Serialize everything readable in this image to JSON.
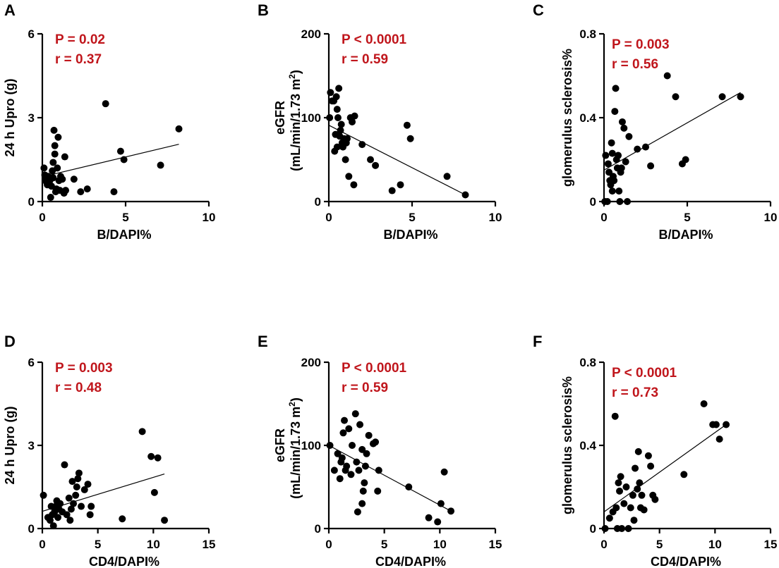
{
  "figure": {
    "width": 1104,
    "height": 806
  },
  "chart_data": [
    {
      "panel": "A",
      "type": "scatter",
      "xlabel": "B/DAPI%",
      "ylabel": "24 h Upro (g)",
      "xlim": [
        0,
        10
      ],
      "ylim": [
        0,
        6
      ],
      "xticks": [
        0,
        5,
        10
      ],
      "yticks": [
        0,
        3,
        6
      ],
      "stats": [
        "P = 0.02",
        "r = 0.37"
      ],
      "fit": {
        "x": [
          0.1,
          8.2
        ],
        "y": [
          0.9,
          2.05
        ]
      },
      "points": [
        [
          0.1,
          1.2
        ],
        [
          0.15,
          0.95
        ],
        [
          0.2,
          0.8
        ],
        [
          0.25,
          0.7
        ],
        [
          0.3,
          0.6
        ],
        [
          0.35,
          0.9
        ],
        [
          0.4,
          0.8
        ],
        [
          0.45,
          0.75
        ],
        [
          0.5,
          0.15
        ],
        [
          0.55,
          0.55
        ],
        [
          0.6,
          1.1
        ],
        [
          0.65,
          0.85
        ],
        [
          0.65,
          1.4
        ],
        [
          0.7,
          2.55
        ],
        [
          0.75,
          1.7
        ],
        [
          0.75,
          2.0
        ],
        [
          0.8,
          0.35
        ],
        [
          0.85,
          0.45
        ],
        [
          0.9,
          1.2
        ],
        [
          0.95,
          2.3
        ],
        [
          1.0,
          0.75
        ],
        [
          1.05,
          0.4
        ],
        [
          1.1,
          0.9
        ],
        [
          1.2,
          0.8
        ],
        [
          1.3,
          0.3
        ],
        [
          1.35,
          1.6
        ],
        [
          1.4,
          0.4
        ],
        [
          1.9,
          0.8
        ],
        [
          2.3,
          0.35
        ],
        [
          2.7,
          0.45
        ],
        [
          3.8,
          3.5
        ],
        [
          4.3,
          0.35
        ],
        [
          4.7,
          1.8
        ],
        [
          4.9,
          1.5
        ],
        [
          7.1,
          1.3
        ],
        [
          8.2,
          2.6
        ]
      ]
    },
    {
      "panel": "B",
      "type": "scatter",
      "xlabel": "B/DAPI%",
      "ylabel_line1": "eGFR",
      "ylabel_line2": "(mL/min/1.73 m",
      "ylabel_sup": "2",
      "ylabel_close": ")",
      "xlim": [
        0,
        10
      ],
      "ylim": [
        0,
        200
      ],
      "xticks": [
        0,
        5,
        10
      ],
      "yticks": [
        0,
        100,
        200
      ],
      "stats": [
        "P < 0.0001",
        "r = 0.59"
      ],
      "fit": {
        "x": [
          0.0,
          8.2
        ],
        "y": [
          91,
          8
        ]
      },
      "points": [
        [
          0.05,
          100
        ],
        [
          0.1,
          130
        ],
        [
          0.2,
          120
        ],
        [
          0.3,
          120
        ],
        [
          0.35,
          60
        ],
        [
          0.4,
          80
        ],
        [
          0.45,
          125
        ],
        [
          0.5,
          65
        ],
        [
          0.5,
          110
        ],
        [
          0.55,
          100
        ],
        [
          0.6,
          135
        ],
        [
          0.65,
          78
        ],
        [
          0.7,
          85
        ],
        [
          0.75,
          92
        ],
        [
          0.8,
          70
        ],
        [
          0.85,
          65
        ],
        [
          0.9,
          75
        ],
        [
          1.0,
          50
        ],
        [
          1.05,
          70
        ],
        [
          1.1,
          75
        ],
        [
          1.2,
          30
        ],
        [
          1.3,
          100
        ],
        [
          1.4,
          95
        ],
        [
          1.5,
          20
        ],
        [
          1.55,
          102
        ],
        [
          2.0,
          68
        ],
        [
          2.5,
          50
        ],
        [
          2.8,
          43
        ],
        [
          3.8,
          13
        ],
        [
          4.3,
          20
        ],
        [
          4.7,
          91
        ],
        [
          4.9,
          75
        ],
        [
          7.1,
          30
        ],
        [
          8.2,
          8
        ]
      ]
    },
    {
      "panel": "C",
      "type": "scatter",
      "xlabel": "B/DAPI%",
      "ylabel": "glomerulus sclerosis%",
      "xlim": [
        0,
        10
      ],
      "ylim": [
        0,
        0.8
      ],
      "xticks": [
        0,
        5,
        10
      ],
      "yticks": [
        0,
        0.4,
        0.8
      ],
      "ytick_labels": [
        "0",
        "0.4",
        "0.8"
      ],
      "stats": [
        "P = 0.003",
        "r = 0.56"
      ],
      "fit": {
        "x": [
          0.0,
          8.2
        ],
        "y": [
          0.15,
          0.52
        ]
      },
      "points": [
        [
          0.05,
          0.0
        ],
        [
          0.1,
          0.22
        ],
        [
          0.2,
          0.0
        ],
        [
          0.25,
          0.18
        ],
        [
          0.3,
          0.14
        ],
        [
          0.35,
          0.1
        ],
        [
          0.4,
          0.08
        ],
        [
          0.45,
          0.28
        ],
        [
          0.5,
          0.05
        ],
        [
          0.5,
          0.23
        ],
        [
          0.55,
          0.12
        ],
        [
          0.6,
          0.1
        ],
        [
          0.65,
          0.43
        ],
        [
          0.7,
          0.54
        ],
        [
          0.75,
          0.2
        ],
        [
          0.8,
          0.16
        ],
        [
          0.85,
          0.22
        ],
        [
          0.9,
          0.05
        ],
        [
          0.95,
          0.0
        ],
        [
          1.0,
          0.14
        ],
        [
          1.05,
          0.16
        ],
        [
          1.1,
          0.38
        ],
        [
          1.2,
          0.35
        ],
        [
          1.3,
          0.19
        ],
        [
          1.4,
          0.0
        ],
        [
          1.5,
          0.31
        ],
        [
          2.0,
          0.25
        ],
        [
          2.5,
          0.26
        ],
        [
          2.8,
          0.17
        ],
        [
          3.8,
          0.6
        ],
        [
          4.3,
          0.5
        ],
        [
          4.7,
          0.18
        ],
        [
          4.9,
          0.2
        ],
        [
          7.1,
          0.5
        ],
        [
          8.2,
          0.5
        ]
      ]
    },
    {
      "panel": "D",
      "type": "scatter",
      "xlabel": "CD4/DAPI%",
      "ylabel": "24 h Upro (g)",
      "xlim": [
        0,
        15
      ],
      "ylim": [
        0,
        6
      ],
      "xticks": [
        0,
        5,
        10,
        15
      ],
      "yticks": [
        0,
        3,
        6
      ],
      "stats": [
        "P = 0.003",
        "r = 0.48"
      ],
      "fit": {
        "x": [
          0.0,
          11.0
        ],
        "y": [
          0.62,
          1.97
        ]
      },
      "points": [
        [
          0.1,
          1.2
        ],
        [
          0.5,
          0.4
        ],
        [
          0.7,
          0.3
        ],
        [
          0.8,
          0.8
        ],
        [
          0.9,
          0.5
        ],
        [
          1.0,
          0.1
        ],
        [
          1.1,
          0.6
        ],
        [
          1.2,
          0.8
        ],
        [
          1.3,
          1.0
        ],
        [
          1.4,
          0.4
        ],
        [
          1.5,
          0.7
        ],
        [
          1.6,
          0.9
        ],
        [
          1.8,
          0.6
        ],
        [
          2.0,
          2.3
        ],
        [
          2.2,
          0.5
        ],
        [
          2.4,
          1.1
        ],
        [
          2.5,
          0.3
        ],
        [
          2.6,
          0.7
        ],
        [
          2.7,
          1.7
        ],
        [
          2.8,
          0.9
        ],
        [
          3.0,
          1.2
        ],
        [
          3.1,
          1.5
        ],
        [
          3.2,
          1.8
        ],
        [
          3.3,
          2.0
        ],
        [
          3.5,
          0.8
        ],
        [
          3.8,
          1.4
        ],
        [
          4.1,
          1.6
        ],
        [
          4.3,
          0.5
        ],
        [
          4.4,
          0.8
        ],
        [
          7.2,
          0.35
        ],
        [
          9.0,
          3.5
        ],
        [
          9.8,
          2.6
        ],
        [
          10.1,
          1.3
        ],
        [
          10.4,
          2.55
        ],
        [
          11.0,
          0.3
        ]
      ]
    },
    {
      "panel": "E",
      "type": "scatter",
      "xlabel": "CD4/DAPI%",
      "ylabel_line1": "eGFR",
      "ylabel_line2": "(mL/min/1.73 m",
      "ylabel_sup": "2",
      "ylabel_close": ")",
      "xlim": [
        0,
        15
      ],
      "ylim": [
        0,
        200
      ],
      "xticks": [
        0,
        5,
        10,
        15
      ],
      "yticks": [
        0,
        100,
        200
      ],
      "stats": [
        "P < 0.0001",
        "r = 0.59"
      ],
      "fit": {
        "x": [
          0.0,
          11.0
        ],
        "y": [
          100,
          21
        ]
      },
      "points": [
        [
          0.1,
          100
        ],
        [
          0.5,
          70
        ],
        [
          0.8,
          90
        ],
        [
          1.0,
          60
        ],
        [
          1.1,
          80
        ],
        [
          1.2,
          85
        ],
        [
          1.3,
          115
        ],
        [
          1.4,
          130
        ],
        [
          1.5,
          70
        ],
        [
          1.6,
          75
        ],
        [
          1.8,
          120
        ],
        [
          2.0,
          65
        ],
        [
          2.1,
          100
        ],
        [
          2.4,
          138
        ],
        [
          2.5,
          80
        ],
        [
          2.6,
          20
        ],
        [
          2.7,
          70
        ],
        [
          2.8,
          125
        ],
        [
          3.0,
          95
        ],
        [
          3.0,
          30
        ],
        [
          3.1,
          45
        ],
        [
          3.2,
          55
        ],
        [
          3.3,
          75
        ],
        [
          3.4,
          90
        ],
        [
          3.6,
          112
        ],
        [
          4.0,
          102
        ],
        [
          4.2,
          104
        ],
        [
          4.4,
          45
        ],
        [
          4.5,
          70
        ],
        [
          7.2,
          50
        ],
        [
          9.0,
          13
        ],
        [
          9.8,
          8
        ],
        [
          10.1,
          30
        ],
        [
          10.4,
          68
        ],
        [
          11.0,
          21
        ]
      ]
    },
    {
      "panel": "F",
      "type": "scatter",
      "xlabel": "CD4/DAPI%",
      "ylabel": "glomerulus sclerosis%",
      "xlim": [
        0,
        15
      ],
      "ylim": [
        0,
        0.8
      ],
      "xticks": [
        0,
        5,
        10,
        15
      ],
      "yticks": [
        0,
        0.4,
        0.8
      ],
      "ytick_labels": [
        "0",
        "0.4",
        "0.8"
      ],
      "stats": [
        "P < 0.0001",
        "r = 0.73"
      ],
      "fit": {
        "x": [
          0.0,
          11.0
        ],
        "y": [
          0.08,
          0.5
        ]
      },
      "points": [
        [
          0.1,
          0.0
        ],
        [
          0.5,
          0.05
        ],
        [
          0.8,
          0.08
        ],
        [
          1.0,
          0.54
        ],
        [
          1.1,
          0.1
        ],
        [
          1.2,
          0.0
        ],
        [
          1.3,
          0.22
        ],
        [
          1.4,
          0.18
        ],
        [
          1.5,
          0.25
        ],
        [
          1.6,
          0.0
        ],
        [
          1.8,
          0.12
        ],
        [
          2.0,
          0.2
        ],
        [
          2.2,
          0.0
        ],
        [
          2.4,
          0.1
        ],
        [
          2.6,
          0.16
        ],
        [
          2.7,
          0.04
        ],
        [
          2.8,
          0.29
        ],
        [
          3.0,
          0.19
        ],
        [
          3.1,
          0.37
        ],
        [
          3.2,
          0.22
        ],
        [
          3.3,
          0.1
        ],
        [
          3.4,
          0.16
        ],
        [
          3.6,
          0.09
        ],
        [
          4.0,
          0.35
        ],
        [
          4.2,
          0.3
        ],
        [
          4.4,
          0.16
        ],
        [
          4.6,
          0.14
        ],
        [
          7.2,
          0.26
        ],
        [
          9.0,
          0.6
        ],
        [
          9.8,
          0.5
        ],
        [
          10.1,
          0.5
        ],
        [
          10.4,
          0.43
        ],
        [
          11.0,
          0.5
        ]
      ]
    }
  ]
}
